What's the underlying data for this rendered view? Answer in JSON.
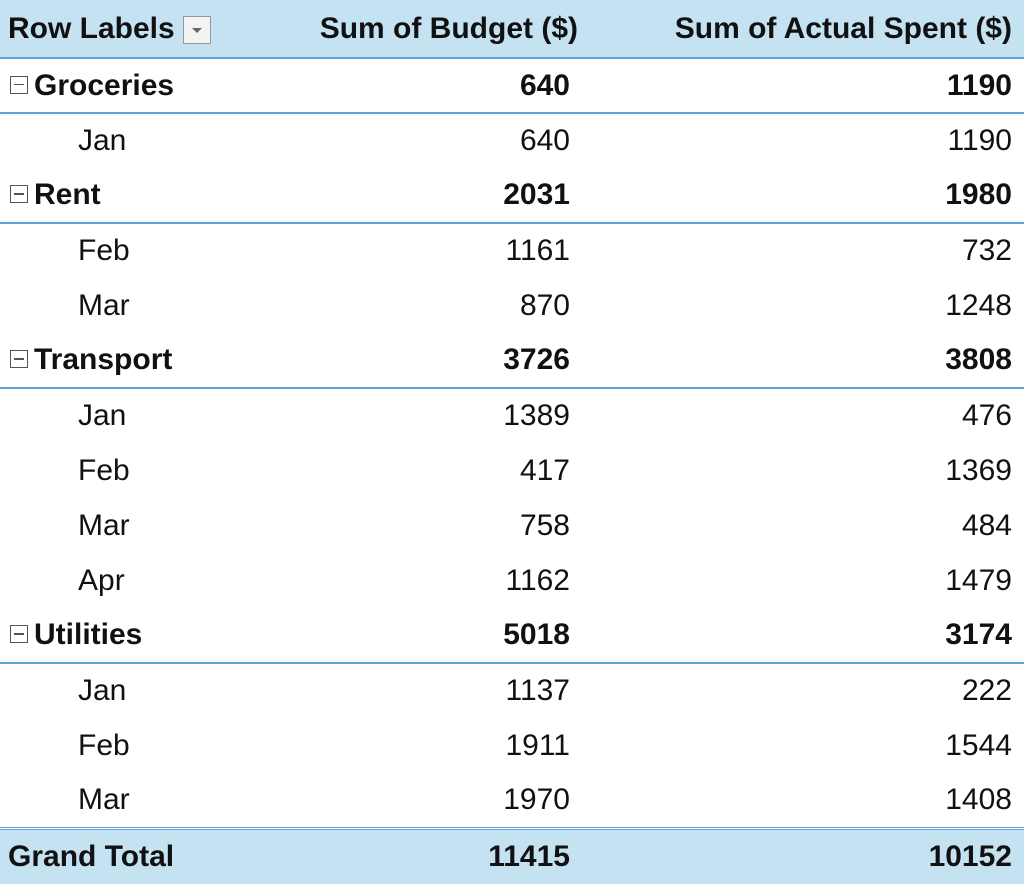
{
  "table": {
    "headers": [
      "Row Labels",
      "Sum of Budget ($)",
      "Sum of Actual Spent ($)"
    ],
    "groups": [
      {
        "label": "Groceries",
        "budget": 640,
        "actual": 1190,
        "rows": [
          {
            "label": "Jan",
            "budget": 640,
            "actual": 1190
          }
        ]
      },
      {
        "label": "Rent",
        "budget": 2031,
        "actual": 1980,
        "rows": [
          {
            "label": "Feb",
            "budget": 1161,
            "actual": 732
          },
          {
            "label": "Mar",
            "budget": 870,
            "actual": 1248
          }
        ]
      },
      {
        "label": "Transport",
        "budget": 3726,
        "actual": 3808,
        "rows": [
          {
            "label": "Jan",
            "budget": 1389,
            "actual": 476
          },
          {
            "label": "Feb",
            "budget": 417,
            "actual": 1369
          },
          {
            "label": "Mar",
            "budget": 758,
            "actual": 484
          },
          {
            "label": "Apr",
            "budget": 1162,
            "actual": 1479
          }
        ]
      },
      {
        "label": "Utilities",
        "budget": 5018,
        "actual": 3174,
        "rows": [
          {
            "label": "Jan",
            "budget": 1137,
            "actual": 222
          },
          {
            "label": "Feb",
            "budget": 1911,
            "actual": 1544
          },
          {
            "label": "Mar",
            "budget": 1970,
            "actual": 1408
          }
        ]
      }
    ],
    "total": {
      "label": "Grand Total",
      "budget": 11415,
      "actual": 10152
    }
  }
}
